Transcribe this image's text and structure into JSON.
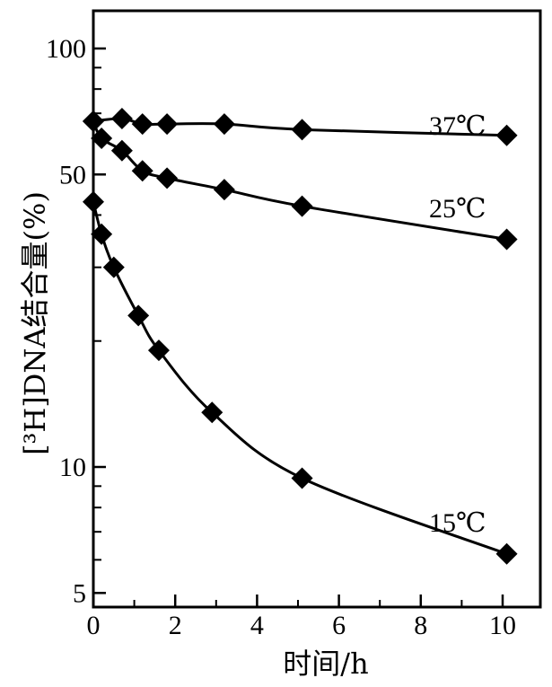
{
  "chart_data": {
    "type": "line",
    "title": "",
    "xlabel": "时间/h",
    "ylabel": "[³H]DNA结合量(%)",
    "x_scale": "linear",
    "y_scale": "log",
    "xlim": [
      0,
      10.9
    ],
    "ylim": [
      5,
      130
    ],
    "x_ticks": [
      0,
      2,
      4,
      6,
      8,
      10
    ],
    "x_tick_labels": [
      "0",
      "2",
      "4",
      "6",
      "8",
      "10"
    ],
    "y_ticks": [
      5,
      10,
      50,
      100
    ],
    "y_tick_labels": [
      "5",
      "10",
      "50",
      "100"
    ],
    "y_minor_ticks": [
      6,
      7,
      8,
      9,
      20,
      30,
      40,
      60,
      70,
      80,
      90
    ],
    "grid": false,
    "marker": "diamond",
    "series": [
      {
        "name": "37℃",
        "x": [
          0.0,
          0.7,
          1.2,
          1.8,
          3.2,
          5.1,
          10.1
        ],
        "y": [
          67,
          68,
          66,
          66,
          66,
          64,
          62
        ]
      },
      {
        "name": "25℃",
        "x": [
          0.0,
          0.2,
          0.7,
          1.2,
          1.8,
          3.2,
          5.1,
          10.1
        ],
        "y": [
          67,
          61,
          57,
          51,
          49,
          46,
          42,
          35
        ]
      },
      {
        "name": "15℃",
        "x": [
          0.0,
          0.2,
          0.5,
          1.1,
          1.6,
          2.9,
          5.1,
          10.1
        ],
        "y": [
          43,
          36,
          30,
          23,
          19,
          13.5,
          9.4,
          6.2
        ]
      }
    ]
  }
}
